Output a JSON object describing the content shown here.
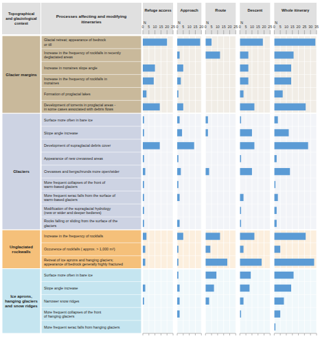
{
  "chart_data": [
    {
      "type": "bar",
      "orientation": "horizontal",
      "title": "Refuge access",
      "xlabel": "N",
      "annotations": [
        "Topographical\nand glaciological\ncontext",
        "Processes affecting and modifying\nitineraries"
      ],
      "groups": [
        {
          "label": "Glacier margins",
          "color": "#c9b99b",
          "categories": [
            "Glacial retreat; appearance of bedrock\nor till",
            "Increase in the frequency of rockfalls in recently\ndeglaciated areas",
            "Increase in moraines slope angle",
            "Increase in the frequency of rockfalls in\nmoraines",
            "Formation of proglacial lakes",
            "Development of torrents in proglacial areas -\nin some cases associated with debris flows"
          ]
        },
        {
          "label": "Glaciers",
          "color": "#cdd3e3",
          "categories": [
            "Surface more often in bare ice",
            "Slope angle increase",
            "Development of supraglacial debris cover",
            "Appearance of new crevassed areas",
            "Crevasses and bergschrunds more open/wider",
            "More frequent collapses of the front of\nwarm-based glaciers",
            "More frequent serac falls from the surface of\nwarm-based glaciers",
            "Modification of the supraglacial hydrology\n(new or wider and deeper bedieres)",
            "Rocks falling or sliding from the surface of the\nglaciers"
          ]
        },
        {
          "label": "Unglaciated\nrockwalls",
          "color": "#f5c07a",
          "categories": [
            "Increase in the frequency of rockfalls",
            "Occurence of rockfalls ( approx. > 1,000 m³)",
            "Retreat of ice aprons and hanging glaciers;\nappearance of bedrock generally highly fractured"
          ]
        },
        {
          "label": "Ice aprons,\nhanging glaciers\nand snow ridges",
          "color": "#c5e5f0",
          "categories": [
            "Surface more often in bare ice",
            "Slope angle increase",
            "Narrower snow ridges",
            "More frequent collapses of the front\nof hanging glaciers",
            "More frequent serac falls from hanging glaciers"
          ]
        }
      ],
      "values": [
        20,
        0,
        10,
        9,
        3,
        14,
        1,
        1,
        14,
        1,
        2,
        1,
        1,
        1,
        1,
        3,
        2,
        2,
        0,
        2,
        1,
        0,
        0
      ],
      "color": "#5b9bd5",
      "xlim": [
        0,
        25
      ],
      "xticks": [
        0,
        5,
        10,
        15,
        20,
        25
      ],
      "grid": true
    },
    {
      "type": "bar",
      "orientation": "horizontal",
      "title": "Approach",
      "xlabel": "N",
      "values": [
        19,
        2,
        5,
        3,
        1,
        5,
        2,
        4,
        14,
        1,
        3,
        1,
        2,
        0,
        2,
        5,
        1,
        1,
        1,
        2,
        2,
        2,
        0
      ],
      "color": "#5b9bd5",
      "xlim": [
        0,
        20
      ],
      "xticks": [
        0,
        5,
        10,
        15,
        20
      ],
      "grid": true
    },
    {
      "type": "bar",
      "orientation": "horizontal",
      "title": "Route",
      "xlabel": "N",
      "values": [
        5,
        12,
        0,
        0,
        0,
        0,
        2,
        2,
        0,
        0,
        3,
        0,
        0,
        0,
        0,
        12,
        4,
        18,
        9,
        7,
        3,
        0,
        0
      ],
      "color": "#5b9bd5",
      "xlim": [
        0,
        25
      ],
      "xticks": [
        0,
        5,
        10,
        15,
        20,
        25
      ],
      "grid": true
    },
    {
      "type": "bar",
      "orientation": "horizontal",
      "title": "Descent",
      "xlabel": "N",
      "values": [
        19,
        7,
        7,
        7,
        3,
        12,
        1,
        10,
        12,
        1,
        10,
        0,
        3,
        1,
        1,
        12,
        3,
        18,
        9,
        8,
        3,
        1,
        0
      ],
      "color": "#5b9bd5",
      "xlim": [
        0,
        25
      ],
      "xticks": [
        0,
        5,
        10,
        15,
        20,
        25
      ],
      "grid": true
    },
    {
      "type": "bar",
      "orientation": "horizontal",
      "title": "Whole itinerary",
      "xlabel": "N",
      "values": [
        34,
        16,
        14,
        14,
        7,
        26,
        3,
        12,
        28,
        2,
        13,
        1,
        3,
        2,
        2,
        26,
        5,
        33,
        16,
        14,
        8,
        5,
        1
      ],
      "color": "#5b9bd5",
      "xlim": [
        0,
        35
      ],
      "xticks": [
        0,
        5,
        10,
        15,
        20,
        25,
        30,
        35
      ],
      "grid": true
    }
  ]
}
